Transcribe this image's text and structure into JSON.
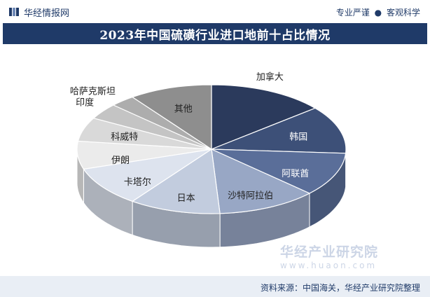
{
  "header": {
    "brand_name": "华经情报网",
    "slogan_left": "专业严谨",
    "slogan_right": "客观科学",
    "slogan_sep": "●"
  },
  "title": "2023年中国硫磺行业进口地前十占比情况",
  "watermark": {
    "title": "华经产业研究院",
    "url": "www.huaon.com"
  },
  "source": "资料来源：中国海关，华经产业研究院整理",
  "chart_data": {
    "type": "pie",
    "style": "3d",
    "start_angle_deg": 0,
    "direction": "clockwise",
    "legend": "none",
    "slices": [
      {
        "label": "加拿大",
        "value": 14,
        "color": "#2b3a5c"
      },
      {
        "label": "韩国",
        "value": 12,
        "color": "#3d5078"
      },
      {
        "label": "阿联酋",
        "value": 11,
        "color": "#5a6e99"
      },
      {
        "label": "沙特阿拉伯",
        "value": 12,
        "color": "#98a7c5"
      },
      {
        "label": "日本",
        "value": 11,
        "color": "#c2ccde"
      },
      {
        "label": "卡塔尔",
        "value": 10,
        "color": "#dde3ee"
      },
      {
        "label": "伊朗",
        "value": 7,
        "color": "#ebebeb"
      },
      {
        "label": "科威特",
        "value": 6,
        "color": "#d9d9d9"
      },
      {
        "label": "印度",
        "value": 4,
        "color": "#c4c4c4"
      },
      {
        "label": "哈萨克斯坦",
        "value": 3,
        "color": "#adadad"
      },
      {
        "label": "其他",
        "value": 10,
        "color": "#8e8e8e"
      }
    ]
  }
}
